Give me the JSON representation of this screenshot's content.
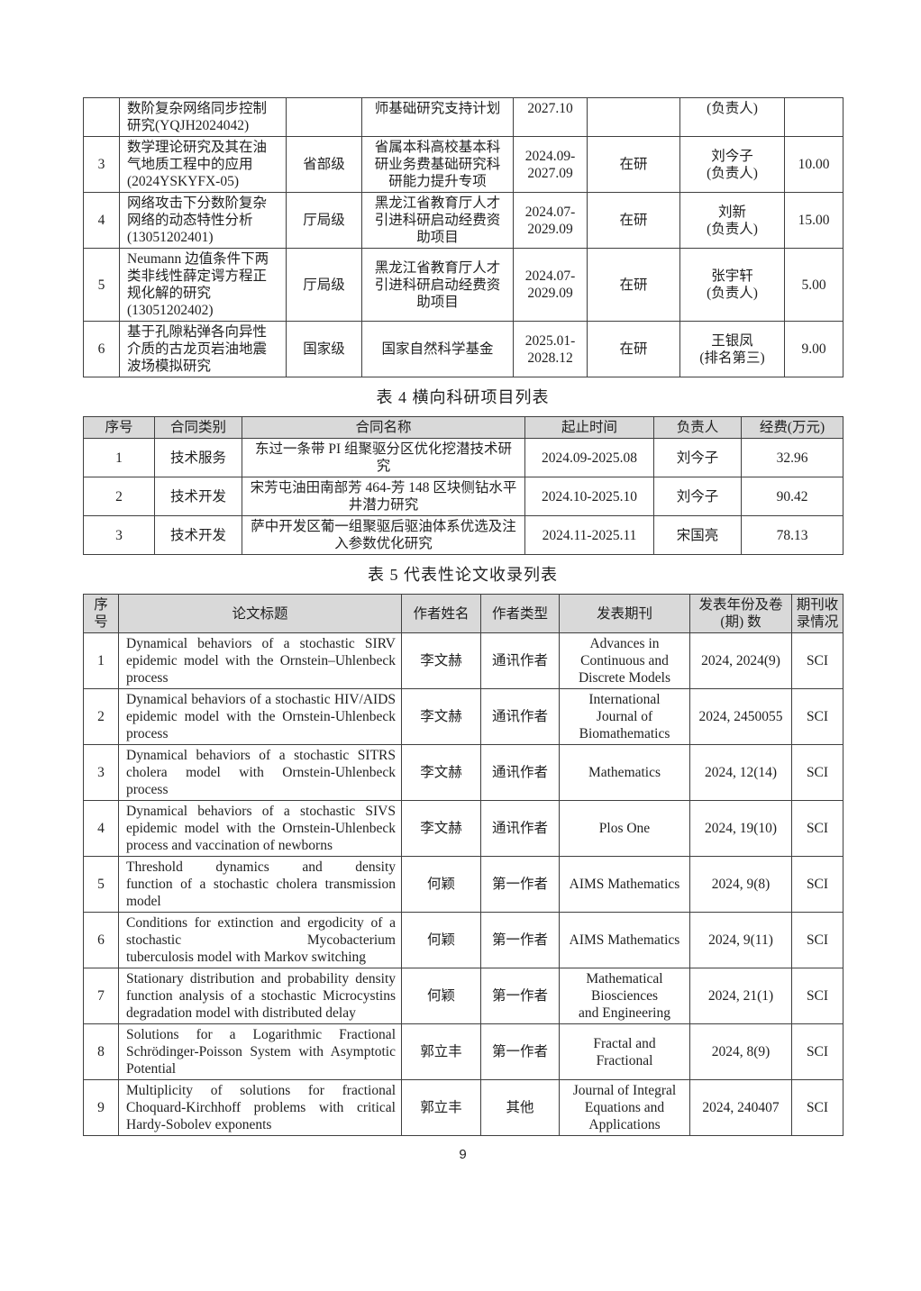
{
  "page": {
    "number": "9"
  },
  "table3": {
    "rows": [
      {
        "no": "",
        "name": "数阶复杂网络同步控制\n研究(YQJH2024042)",
        "level": "",
        "source": "师基础研究支持计划",
        "period": "2027.10",
        "status": "",
        "person": "(负责人)",
        "funds": ""
      },
      {
        "no": "3",
        "name": "数学理论研究及其在油\n气地质工程中的应用\n(2024YSKYFX-05)",
        "level": "省部级",
        "source": "省属本科高校基本科\n研业务费基础研究科\n研能力提升专项",
        "period": "2024.09-\n2027.09",
        "status": "在研",
        "person": "刘今子\n(负责人)",
        "funds": "10.00"
      },
      {
        "no": "4",
        "name": "网络攻击下分数阶复杂\n网络的动态特性分析\n(13051202401)",
        "level": "厅局级",
        "source": "黑龙江省教育厅人才\n引进科研启动经费资\n助项目",
        "period": "2024.07-\n2029.09",
        "status": "在研",
        "person": "刘新\n(负责人)",
        "funds": "15.00"
      },
      {
        "no": "5",
        "name": "Neumann 边值条件下两\n类非线性薛定谔方程正\n规化解的研究\n(13051202402)",
        "level": "厅局级",
        "source": "黑龙江省教育厅人才\n引进科研启动经费资\n助项目",
        "period": "2024.07-\n2029.09",
        "status": "在研",
        "person": "张宇轩\n(负责人)",
        "funds": "5.00"
      },
      {
        "no": "6",
        "name": "基于孔隙粘弹各向异性\n介质的古龙页岩油地震\n波场模拟研究",
        "level": "国家级",
        "source": "国家自然科学基金",
        "period": "2025.01-\n2028.12",
        "status": "在研",
        "person": "王银凤\n(排名第三)",
        "funds": "9.00"
      }
    ]
  },
  "table4": {
    "title": "表 4 横向科研项目列表",
    "headers": {
      "no": "序号",
      "category": "合同类别",
      "name": "合同名称",
      "period": "起止时间",
      "person": "负责人",
      "funds": "经费(万元)"
    },
    "rows": [
      {
        "no": "1",
        "category": "技术服务",
        "name": "东过一条带 PI 组聚驱分区优化挖潜技术研\n究",
        "period": "2024.09-2025.08",
        "person": "刘今子",
        "funds": "32.96"
      },
      {
        "no": "2",
        "category": "技术开发",
        "name": "宋芳屯油田南部芳 464-芳 148 区块侧钻水平\n井潜力研究",
        "period": "2024.10-2025.10",
        "person": "刘今子",
        "funds": "90.42"
      },
      {
        "no": "3",
        "category": "技术开发",
        "name": "萨中开发区葡一组聚驱后驱油体系优选及注\n入参数优化研究",
        "period": "2024.11-2025.11",
        "person": "宋国亮",
        "funds": "78.13"
      }
    ]
  },
  "table5": {
    "title": "表 5 代表性论文收录列表",
    "headers": {
      "no": "序\n号",
      "title": "论文标题",
      "author": "作者姓名",
      "author_type": "作者类型",
      "journal": "发表期刊",
      "year_volume": "发表年份及卷\n(期) 数",
      "index": "期刊收\n录情况"
    },
    "rows": [
      {
        "no": "1",
        "title": "Dynamical behaviors of a stochastic SIRV\nepidemic model with the Ornstein–Uhlenbeck\nprocess",
        "author": "李文赫",
        "author_type": "通讯作者",
        "journal": "Advances in\nContinuous and\nDiscrete Models",
        "year_volume": "2024, 2024(9)",
        "index": "SCI"
      },
      {
        "no": "2",
        "title": "Dynamical behaviors of a stochastic HIV/AIDS\nepidemic model with the Ornstein-Uhlenbeck\nprocess",
        "author": "李文赫",
        "author_type": "通讯作者",
        "journal": "International\nJournal of\nBiomathematics",
        "year_volume": "2024, 2450055",
        "index": "SCI"
      },
      {
        "no": "3",
        "title": "Dynamical behaviors of a stochastic SITRS\ncholera model with Ornstein-Uhlenbeck\nprocess",
        "author": "李文赫",
        "author_type": "通讯作者",
        "journal": "Mathematics",
        "year_volume": "2024, 12(14)",
        "index": "SCI"
      },
      {
        "no": "4",
        "title": "Dynamical behaviors of a stochastic SIVS\nepidemic model with the Ornstein-Uhlenbeck\nprocess and vaccination of newborns",
        "author": "李文赫",
        "author_type": "通讯作者",
        "journal": "Plos One",
        "year_volume": "2024, 19(10)",
        "index": "SCI"
      },
      {
        "no": "5",
        "title": "Threshold dynamics and density\nfunction of a stochastic cholera transmission\nmodel",
        "author": "何颖",
        "author_type": "第一作者",
        "journal": "AIMS Mathematics",
        "year_volume": "2024, 9(8)",
        "index": "SCI"
      },
      {
        "no": "6",
        "title": "Conditions for extinction and ergodicity of a\nstochastic Mycobacterium\ntuberculosis model with Markov switching",
        "author": "何颖",
        "author_type": "第一作者",
        "journal": "AIMS Mathematics",
        "year_volume": "2024, 9(11)",
        "index": "SCI"
      },
      {
        "no": "7",
        "title": "Stationary distribution and probability density\nfunction analysis of a stochastic Microcystins\ndegradation model with distributed delay",
        "author": "何颖",
        "author_type": "第一作者",
        "journal": "Mathematical\nBiosciences\nand Engineering",
        "year_volume": "2024, 21(1)",
        "index": "SCI"
      },
      {
        "no": "8",
        "title": "Solutions for a Logarithmic Fractional\nSchrödinger-Poisson System with Asymptotic\nPotential",
        "author": "郭立丰",
        "author_type": "第一作者",
        "journal": "Fractal and\nFractional",
        "year_volume": "2024, 8(9)",
        "index": "SCI"
      },
      {
        "no": "9",
        "title": "Multiplicity of solutions for fractional\nChoquard-Kirchhoff problems with critical\nHardy-Sobolev exponents",
        "author": "郭立丰",
        "author_type": "其他",
        "journal": "Journal of Integral\nEquations and\nApplications",
        "year_volume": "2024, 240407",
        "index": "SCI"
      }
    ]
  }
}
